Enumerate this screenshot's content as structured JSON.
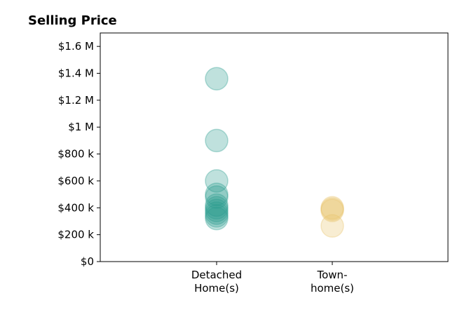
{
  "chart_data": {
    "type": "scatter",
    "title": "Selling Price",
    "xlabel": "",
    "ylabel": "",
    "ylim": [
      0,
      1700000
    ],
    "y_ticks": [
      {
        "value": 0,
        "label": "$0"
      },
      {
        "value": 200000,
        "label": "$200 k"
      },
      {
        "value": 400000,
        "label": "$400 k"
      },
      {
        "value": 600000,
        "label": "$600 k"
      },
      {
        "value": 800000,
        "label": "$800 k"
      },
      {
        "value": 1000000,
        "label": "$1 M"
      },
      {
        "value": 1200000,
        "label": "$1.2 M"
      },
      {
        "value": 1400000,
        "label": "$1.4 M"
      },
      {
        "value": 1600000,
        "label": "$1.6 M"
      }
    ],
    "categories": [
      {
        "label_lines": [
          "Detached",
          "Home(s)"
        ]
      },
      {
        "label_lines": [
          "Town-",
          "home(s)"
        ]
      }
    ],
    "grid": false,
    "series": [
      {
        "color": "#2a9d8f",
        "values": [
          1360000,
          900000,
          600000,
          500000,
          480000,
          420000,
          400000,
          380000,
          360000,
          340000,
          320000
        ]
      },
      {
        "color": "#e9c46a",
        "values": [
          400000,
          390000,
          380000,
          265000
        ]
      }
    ]
  }
}
